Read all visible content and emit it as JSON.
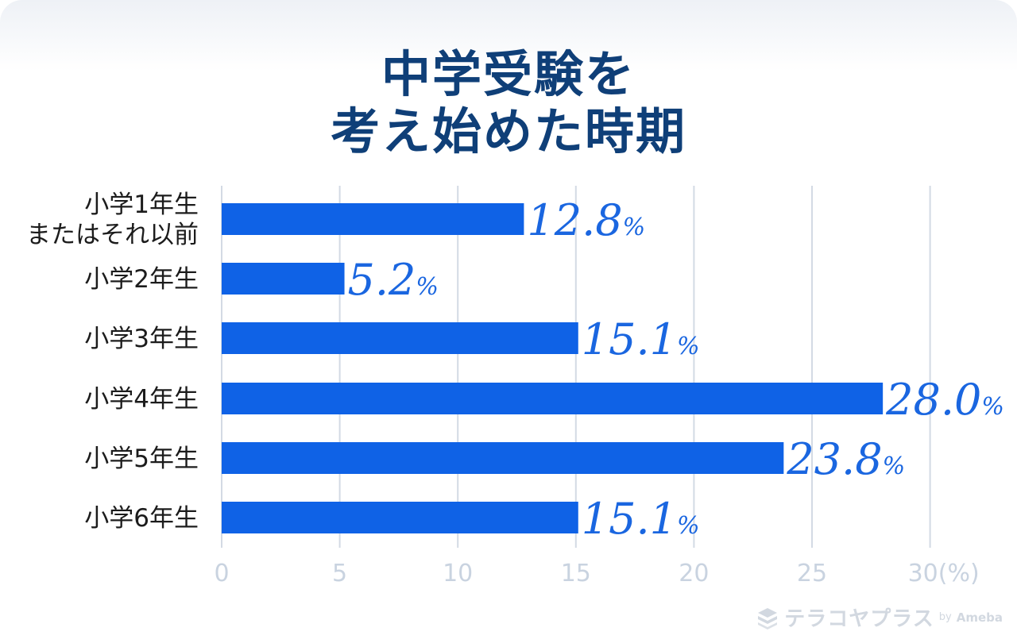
{
  "chart_data": {
    "type": "bar",
    "orientation": "horizontal",
    "title_lines": [
      "中学受験を",
      "考え始めた時期"
    ],
    "categories": [
      [
        "小学1年生",
        "またはそれ以前"
      ],
      [
        "小学2年生"
      ],
      [
        "小学3年生"
      ],
      [
        "小学4年生"
      ],
      [
        "小学5年生"
      ],
      [
        "小学6年生"
      ]
    ],
    "values": [
      12.8,
      5.2,
      15.1,
      28.0,
      23.8,
      15.1
    ],
    "value_labels": [
      "12.8",
      "5.2",
      "15.1",
      "28.0",
      "23.8",
      "15.1"
    ],
    "value_unit": "%",
    "x_ticks": [
      "0",
      "5",
      "10",
      "15",
      "20",
      "25",
      "30(%)"
    ],
    "xlim": [
      0,
      30
    ],
    "grid": true,
    "bar_color": "#0f62e6",
    "label_color": "#1a66e0",
    "grid_color": "#d3dae4"
  },
  "colors": {
    "title": "#0f3f78",
    "tick": "#c9d3e0"
  },
  "logo": {
    "icon": "stacked-layers-icon",
    "name": "テラコヤプラス",
    "by": "by",
    "brand": "Ameba"
  }
}
